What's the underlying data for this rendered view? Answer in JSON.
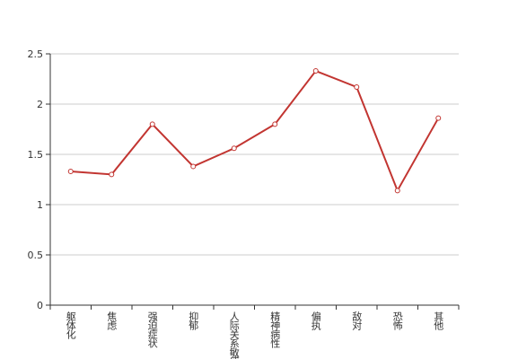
{
  "chart_data": {
    "type": "line",
    "categories": [
      "躯体化",
      "焦虑",
      "强迫症状",
      "抑郁",
      "人际关系敏感",
      "精神病性",
      "偏执",
      "敌对",
      "恐怖",
      "其他"
    ],
    "values": [
      1.33,
      1.3,
      1.8,
      1.38,
      1.56,
      1.8,
      2.33,
      2.17,
      1.14,
      1.86
    ],
    "color": "#c23531",
    "ylim": [
      0,
      2.5
    ],
    "yticks": [
      0,
      0.5,
      1,
      1.5,
      2,
      2.5
    ],
    "grid": true
  }
}
